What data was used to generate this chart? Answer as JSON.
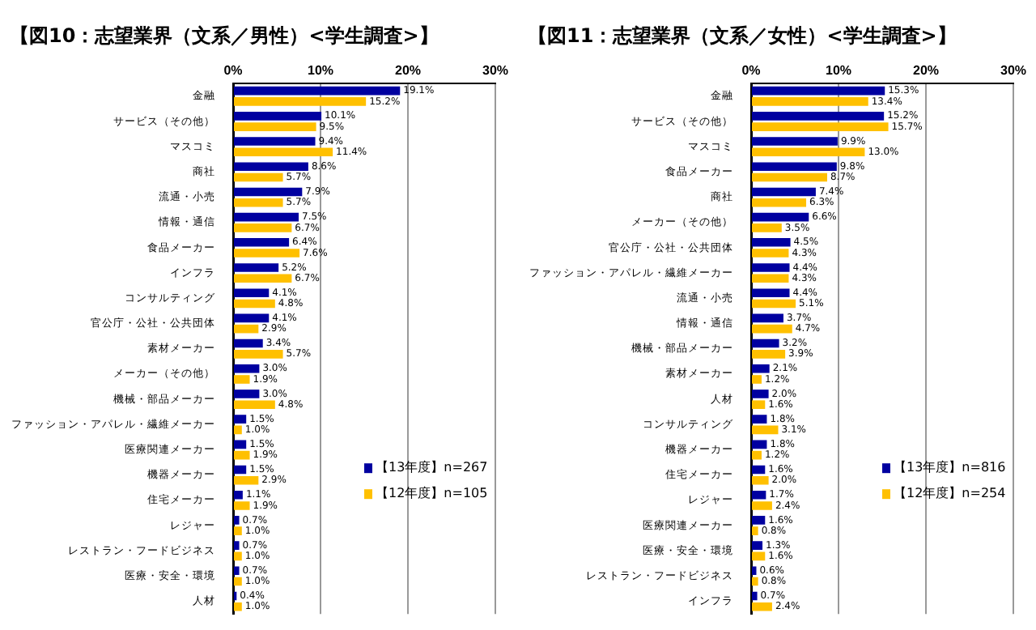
{
  "chart_data": [
    {
      "type": "bar",
      "orientation": "horizontal",
      "title": "【図10：志望業界（文系／男性）<学生調査>】",
      "categories": [
        "金融",
        "サービス（その他）",
        "マスコミ",
        "商社",
        "流通・小売",
        "情報・通信",
        "食品メーカー",
        "インフラ",
        "コンサルティング",
        "官公庁・公社・公共団体",
        "素材メーカー",
        "メーカー（その他）",
        "機械・部品メーカー",
        "ファッション・アパレル・繊維メーカー",
        "医療関連メーカー",
        "機器メーカー",
        "住宅メーカー",
        "レジャー",
        "レストラン・フードビジネス",
        "医療・安全・環境",
        "人材"
      ],
      "series": [
        {
          "name": "【13年度】n=267",
          "color": "#0000a0",
          "values": [
            19.1,
            10.1,
            9.4,
            8.6,
            7.9,
            7.5,
            6.4,
            5.2,
            4.1,
            4.1,
            3.4,
            3.0,
            3.0,
            1.5,
            1.5,
            1.5,
            1.1,
            0.7,
            0.7,
            0.7,
            0.4
          ],
          "value_labels": [
            "19.1%",
            "10.1%",
            "9.4%",
            "8.6%",
            "7.9%",
            "7.5%",
            "6.4%",
            "5.2%",
            "4.1%",
            "4.1%",
            "3.4%",
            "3.0%",
            "3.0%",
            "1.5%",
            "1.5%",
            "1.5%",
            "1.1%",
            "0.7%",
            "0.7%",
            "0.7%",
            "0.4%"
          ]
        },
        {
          "name": "【12年度】n=105",
          "color": "#ffc000",
          "values": [
            15.2,
            9.5,
            11.4,
            5.7,
            5.7,
            6.7,
            7.6,
            6.7,
            4.8,
            2.9,
            5.7,
            1.9,
            4.8,
            1.0,
            1.9,
            2.9,
            1.9,
            1.0,
            1.0,
            1.0,
            1.0
          ],
          "value_labels": [
            "15.2%",
            "9.5%",
            "11.4%",
            "5.7%",
            "5.7%",
            "6.7%",
            "7.6%",
            "6.7%",
            "4.8%",
            "2.9%",
            "5.7%",
            "1.9%",
            "4.8%",
            "1.0%",
            "1.9%",
            "2.9%",
            "1.9%",
            "1.0%",
            "1.0%",
            "1.0%",
            "1.0%"
          ]
        }
      ],
      "xlim": [
        0,
        30
      ],
      "xticks": [
        {
          "value": 0,
          "label": "0%"
        },
        {
          "value": 10,
          "label": "10%"
        },
        {
          "value": 20,
          "label": "20%"
        },
        {
          "value": 30,
          "label": "30%"
        }
      ],
      "grid": "x",
      "legend": "bottom right"
    },
    {
      "type": "bar",
      "orientation": "horizontal",
      "title": "【図11：志望業界（文系／女性）<学生調査>】",
      "categories": [
        "金融",
        "サービス（その他）",
        "マスコミ",
        "食品メーカー",
        "商社",
        "メーカー（その他）",
        "官公庁・公社・公共団体",
        "ファッション・アパレル・繊維メーカー",
        "流通・小売",
        "情報・通信",
        "機械・部品メーカー",
        "素材メーカー",
        "人材",
        "コンサルティング",
        "機器メーカー",
        "住宅メーカー",
        "レジャー",
        "医療関連メーカー",
        "医療・安全・環境",
        "レストラン・フードビジネス",
        "インフラ"
      ],
      "series": [
        {
          "name": "【13年度】n=816",
          "color": "#0000a0",
          "values": [
            15.3,
            15.2,
            9.9,
            9.8,
            7.4,
            6.6,
            4.5,
            4.4,
            4.4,
            3.7,
            3.2,
            2.1,
            2.0,
            1.8,
            1.8,
            1.6,
            1.7,
            1.6,
            1.3,
            0.6,
            0.7
          ],
          "value_labels": [
            "15.3%",
            "15.2%",
            "9.9%",
            "9.8%",
            "7.4%",
            "6.6%",
            "4.5%",
            "4.4%",
            "4.4%",
            "3.7%",
            "3.2%",
            "2.1%",
            "2.0%",
            "1.8%",
            "1.8%",
            "1.6%",
            "1.7%",
            "1.6%",
            "1.3%",
            "0.6%",
            "0.7%"
          ]
        },
        {
          "name": "【12年度】n=254",
          "color": "#ffc000",
          "values": [
            13.4,
            15.7,
            13.0,
            8.7,
            6.3,
            3.5,
            4.3,
            4.3,
            5.1,
            4.7,
            3.9,
            1.2,
            1.6,
            3.1,
            1.2,
            2.0,
            2.4,
            0.8,
            1.6,
            0.8,
            2.4
          ],
          "value_labels": [
            "13.4%",
            "15.7%",
            "13.0%",
            "8.7%",
            "6.3%",
            "3.5%",
            "4.3%",
            "4.3%",
            "5.1%",
            "4.7%",
            "3.9%",
            "1.2%",
            "1.6%",
            "3.1%",
            "1.2%",
            "2.0%",
            "2.4%",
            "0.8%",
            "1.6%",
            "0.8%",
            "2.4%"
          ]
        }
      ],
      "xlim": [
        0,
        30
      ],
      "xticks": [
        {
          "value": 0,
          "label": "0%"
        },
        {
          "value": 10,
          "label": "10%"
        },
        {
          "value": 20,
          "label": "20%"
        },
        {
          "value": 30,
          "label": "30%"
        }
      ],
      "grid": "x",
      "legend": "bottom right"
    }
  ]
}
